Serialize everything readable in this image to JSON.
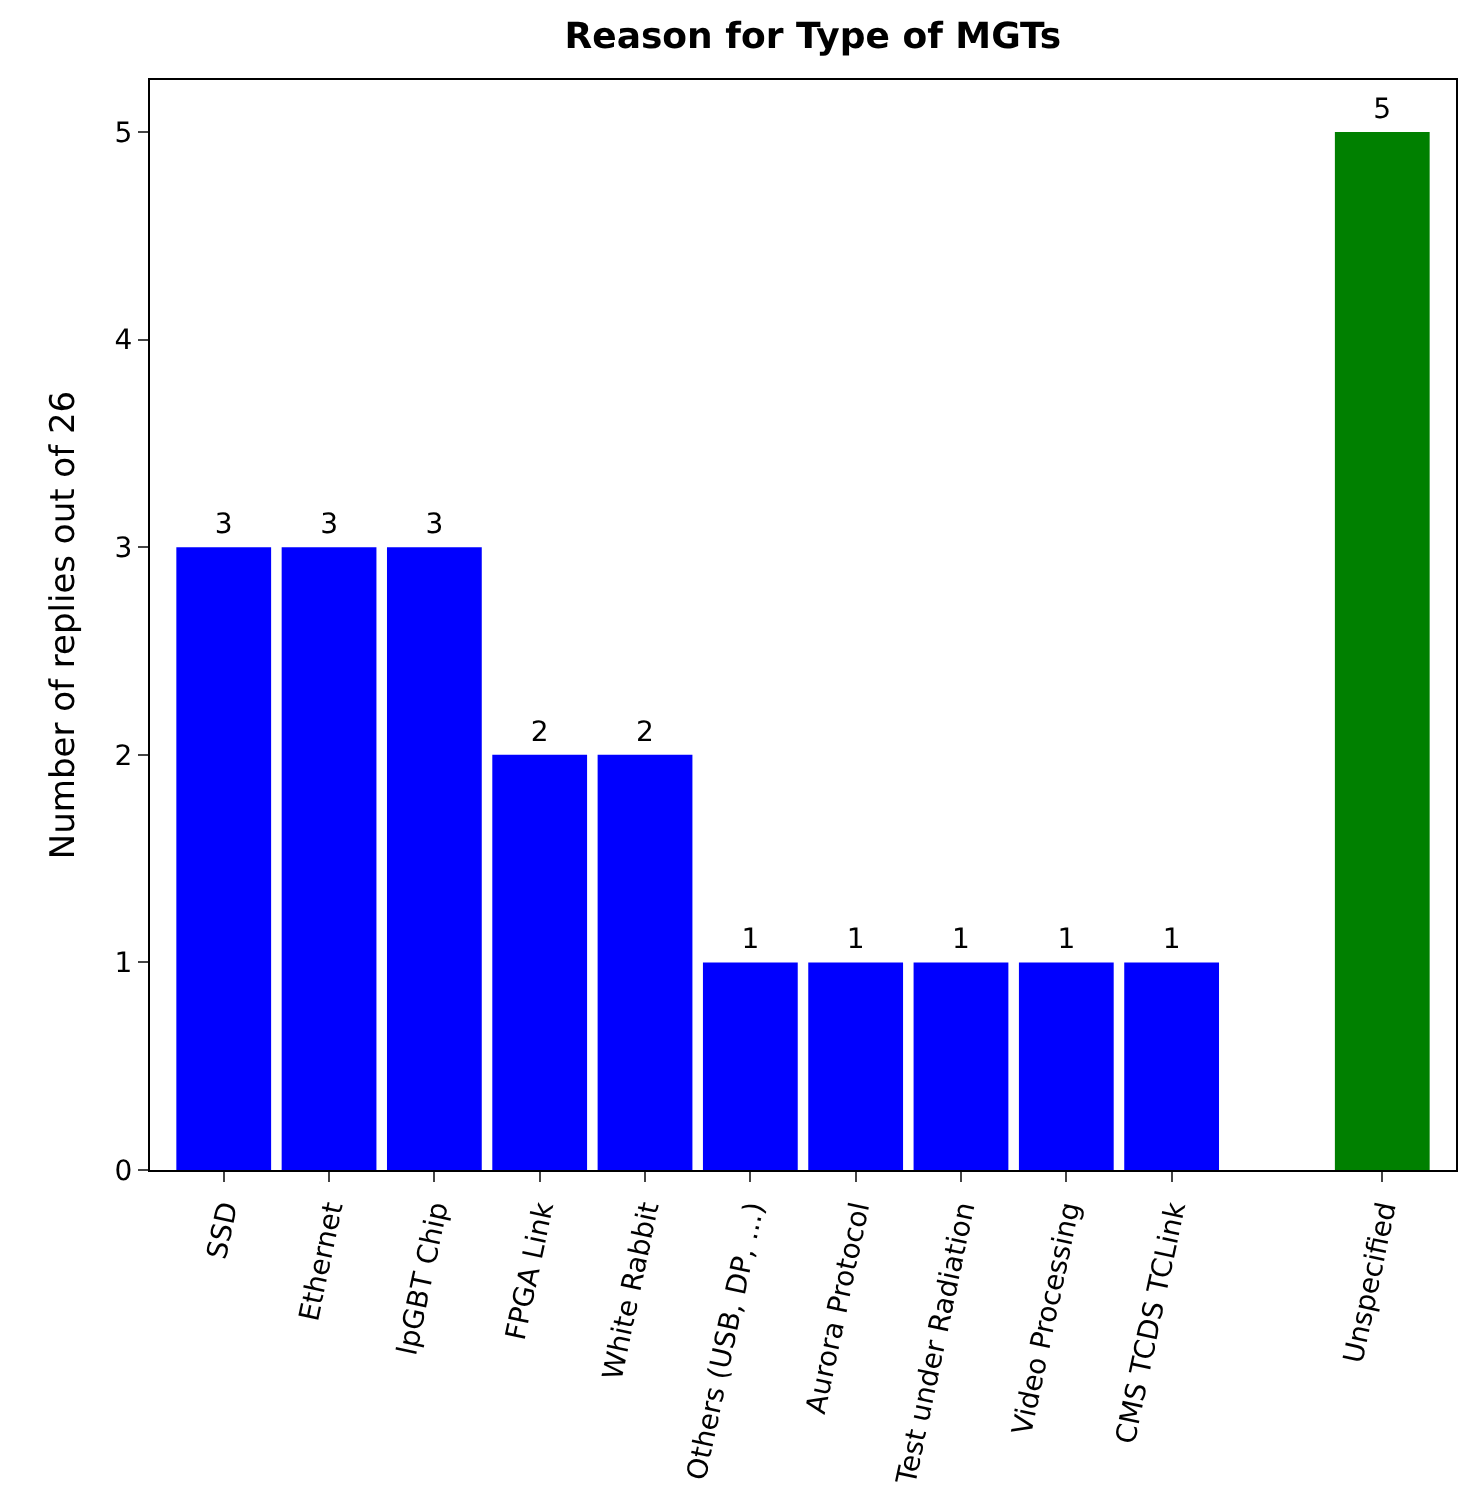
{
  "chart_data": {
    "type": "bar",
    "title": "Reason for Type of MGTs",
    "ylabel": "Number of replies out of 26",
    "categories": [
      "SSD",
      "Ethernet",
      "lpGBT Chip",
      "FPGA Link",
      "White Rabbit",
      "Others (USB, DP, ...)",
      "Aurora Protocol",
      "Test under Radiation",
      "Video Processing",
      "CMS TCDS TCLink",
      null,
      "Unspecified"
    ],
    "values": [
      3,
      3,
      3,
      2,
      2,
      1,
      1,
      1,
      1,
      1,
      null,
      5
    ],
    "colors": [
      "#0000ff",
      "#0000ff",
      "#0000ff",
      "#0000ff",
      "#0000ff",
      "#0000ff",
      "#0000ff",
      "#0000ff",
      "#0000ff",
      "#0000ff",
      "#0000ff",
      "#008000"
    ],
    "data_labels": true,
    "ylim": [
      0,
      5.25
    ],
    "yticks": [
      0,
      1,
      2,
      3,
      4,
      5
    ]
  }
}
